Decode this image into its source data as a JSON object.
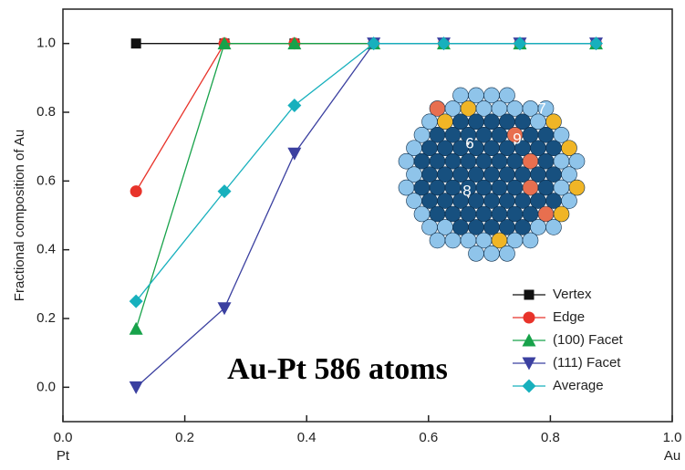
{
  "chart_data": {
    "type": "line",
    "ylabel": "Fractional composition of Au",
    "x_end_labels": [
      "Pt",
      "Au"
    ],
    "annotation": "Au-Pt 586 atoms",
    "inset_labels": [
      "6",
      "7",
      "8",
      "9"
    ],
    "x": [
      0.12,
      0.265,
      0.38,
      0.51,
      0.625,
      0.75,
      0.875
    ],
    "series": [
      {
        "name": "Vertex",
        "color": "#111111",
        "marker": "square",
        "values": [
          1.0,
          1.0,
          1.0,
          1.0,
          1.0,
          1.0,
          1.0
        ]
      },
      {
        "name": "Edge",
        "color": "#e8332a",
        "marker": "circle",
        "values": [
          0.57,
          1.0,
          1.0,
          1.0,
          1.0,
          1.0,
          1.0
        ]
      },
      {
        "name": "(100) Facet",
        "color": "#17a24a",
        "marker": "triangle-up",
        "values": [
          0.17,
          1.0,
          1.0,
          1.0,
          1.0,
          1.0,
          1.0
        ]
      },
      {
        "name": "(111) Facet",
        "color": "#3b40a0",
        "marker": "triangle-down",
        "values": [
          0.0,
          0.23,
          0.68,
          1.0,
          1.0,
          1.0,
          1.0
        ]
      },
      {
        "name": "Average",
        "color": "#17b0bd",
        "marker": "diamond",
        "values": [
          0.25,
          0.57,
          0.82,
          1.0,
          1.0,
          1.0,
          1.0
        ]
      }
    ],
    "xlim": [
      0,
      1.0
    ],
    "ylim": [
      -0.1,
      1.1
    ],
    "xticks": [
      {
        "value": 0,
        "label": "0.0"
      },
      0.2,
      0.4,
      0.6,
      0.8,
      {
        "value": 1,
        "label": "1.0"
      }
    ],
    "yticks": [
      {
        "value": 0,
        "label": "0.0"
      },
      0.2,
      0.4,
      0.6,
      0.8,
      {
        "value": 1,
        "label": "1.0"
      }
    ],
    "legend": "lower right"
  }
}
